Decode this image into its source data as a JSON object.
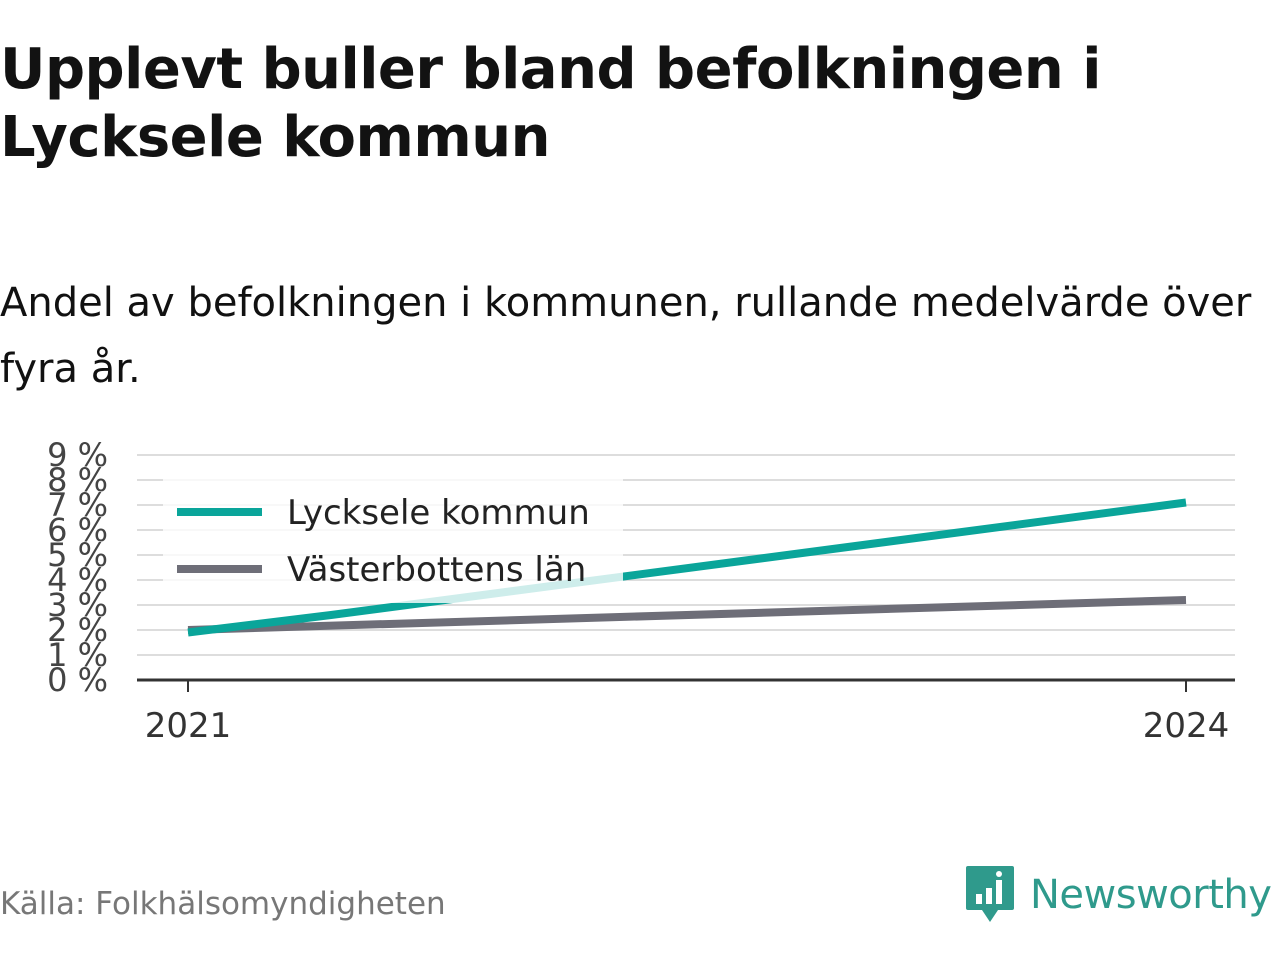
{
  "header": {
    "title": "Upplevt buller bland befolkningen i Lycksele kommun",
    "subtitle": "Andel av befolkningen i kommunen, rullande medelvärde över fyra år."
  },
  "footer": {
    "source": "Källa: Folkhälsomyndigheten",
    "brand": "Newsworthy"
  },
  "colors": {
    "series_primary": "#0aa59a",
    "series_secondary": "#6e6e78",
    "brand": "#2f9a8c",
    "grid": "#dddddd"
  },
  "chart_data": {
    "type": "line",
    "x": [
      2021,
      2024
    ],
    "x_tick_labels": [
      "2021",
      "2024"
    ],
    "y_tick_labels": [
      "0 %",
      "1 %",
      "2 %",
      "3 %",
      "4 %",
      "5 %",
      "6 %",
      "7 %",
      "8 %",
      "9 %"
    ],
    "ylim": [
      0,
      9
    ],
    "grid": true,
    "legend_position": "top-left",
    "series": [
      {
        "name": "Lycksele kommun",
        "x": [
          2021,
          2021.43,
          2024
        ],
        "values": [
          1.9,
          2.6,
          7.1
        ]
      },
      {
        "name": "Västerbottens län",
        "x": [
          2021,
          2024
        ],
        "values": [
          2.0,
          3.2
        ]
      }
    ]
  }
}
